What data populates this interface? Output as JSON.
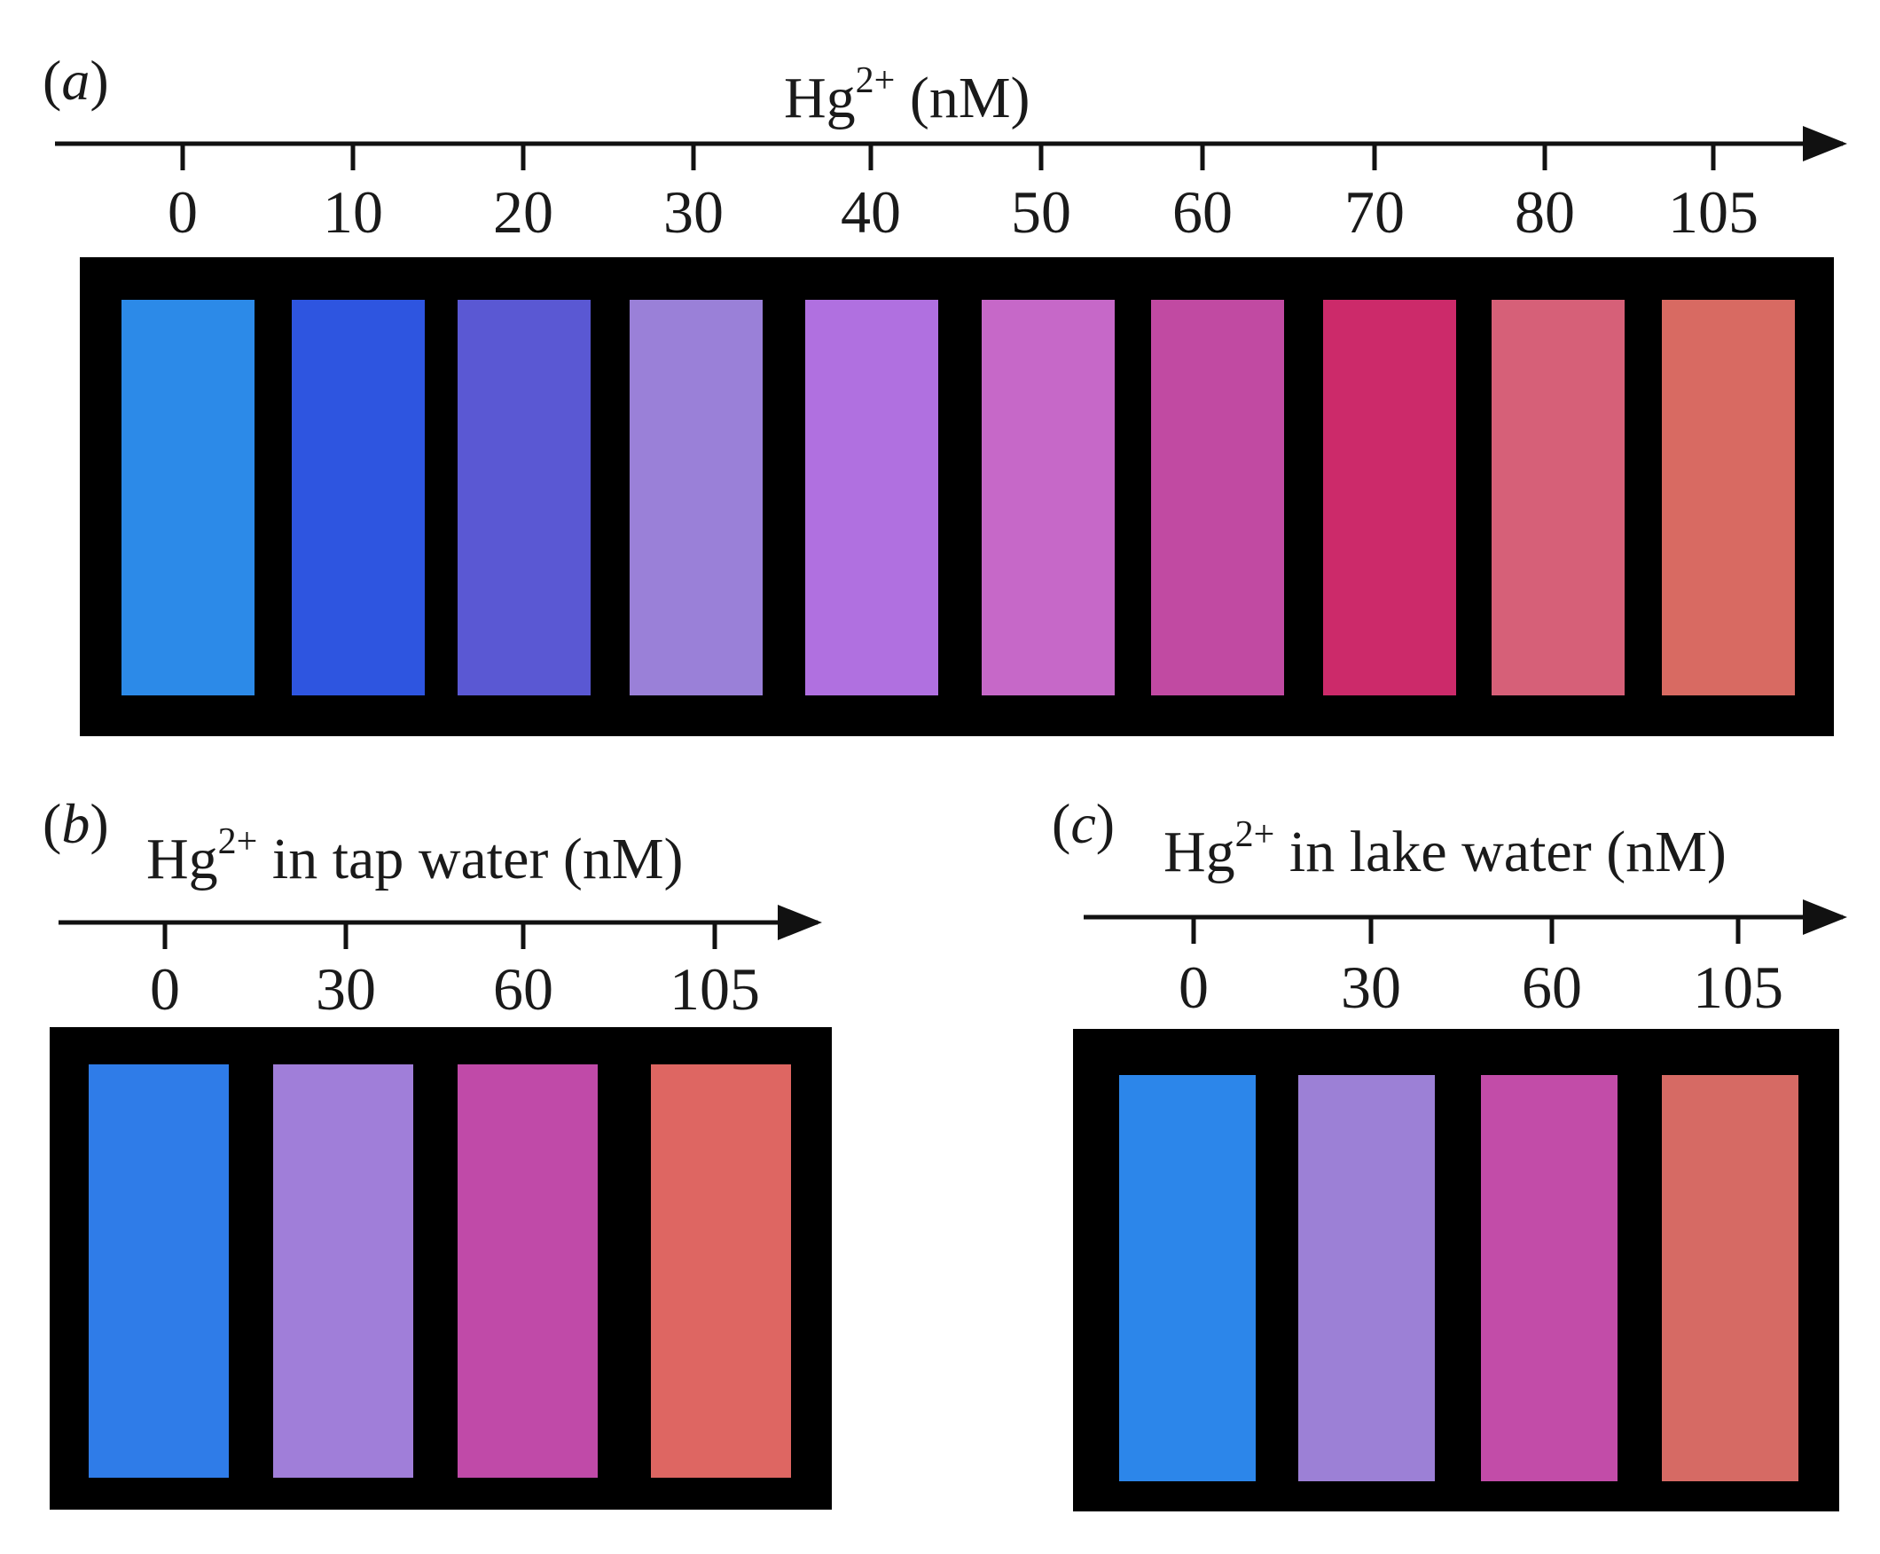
{
  "panels": [
    {
      "id": "a",
      "letter": "a",
      "title": {
        "prefix": "Hg",
        "sup": "2+",
        "suffix": " (nM)"
      },
      "ticks": [
        "0",
        "10",
        "20",
        "30",
        "40",
        "50",
        "60",
        "70",
        "80",
        "105"
      ],
      "swatch_colors": [
        "#2c8ae8",
        "#2e55e0",
        "#5a58d3",
        "#9a80d8",
        "#b070e0",
        "#c668c8",
        "#c14aa2",
        "#cc2a6a",
        "#d66078",
        "#d86a62"
      ]
    },
    {
      "id": "b",
      "letter": "b",
      "title": {
        "prefix": "Hg",
        "sup": "2+",
        "suffix": " in tap water (nM)"
      },
      "ticks": [
        "0",
        "30",
        "60",
        "105"
      ],
      "swatch_colors": [
        "#2f7ce8",
        "#a07ed9",
        "#c04aa8",
        "#de6662"
      ]
    },
    {
      "id": "c",
      "letter": "c",
      "title": {
        "prefix": "Hg",
        "sup": "2+",
        "suffix": " in lake water (nM)"
      },
      "ticks": [
        "0",
        "30",
        "60",
        "105"
      ],
      "swatch_colors": [
        "#2c86ea",
        "#9c80d6",
        "#c24ca8",
        "#d66a64"
      ]
    }
  ]
}
